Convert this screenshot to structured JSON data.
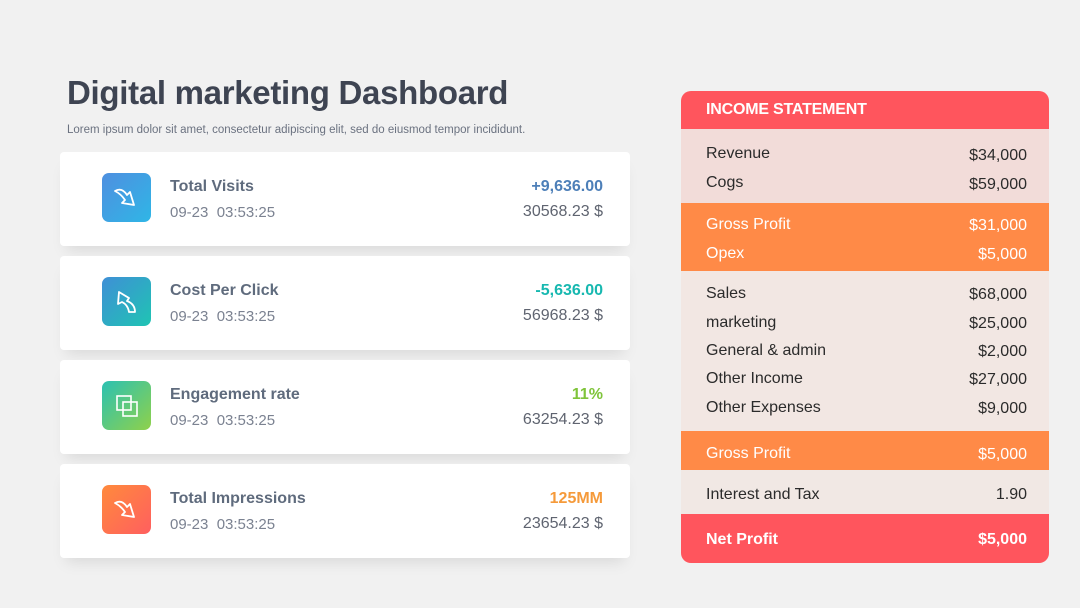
{
  "header": {
    "title_bold": "Digital marketing",
    "title_rest": "Dashboard",
    "subtitle": "Lorem ipsum dolor sit amet, consectetur adipiscing elit, sed do eiusmod tempor incididunt."
  },
  "colors": {
    "accent_red": "#ff555d",
    "accent_orange": "#ff8a47",
    "visits_blue": "#4d7fb8",
    "cpc_teal": "#17b8b0",
    "engagement_green": "#7fc43a",
    "impressions_orange": "#f59a3a"
  },
  "metrics": [
    {
      "name": "Total Visits",
      "time": "09-23  03:53:25",
      "change": "+9,636.00",
      "amount": "30568.23 $",
      "icon": "arrow-down-right-icon"
    },
    {
      "name": "Cost Per Click",
      "time": "09-23  03:53:25",
      "change": "-5,636.00",
      "amount": "56968.23 $",
      "icon": "arrow-up-left-icon"
    },
    {
      "name": "Engagement rate",
      "time": "09-23  03:53:25",
      "change": "11%",
      "amount": "63254.23 $",
      "icon": "squares-icon"
    },
    {
      "name": "Total Impressions",
      "time": "09-23  03:53:25",
      "change": "125MM",
      "amount": "23654.23 $",
      "icon": "arrow-down-right-icon"
    }
  ],
  "income_statement": {
    "title": "INCOME STATEMENT",
    "rows": [
      {
        "label": "Revenue",
        "value": "$34,000"
      },
      {
        "label": "Cogs",
        "value": "$59,000"
      },
      {
        "label": "Gross Profit",
        "value": "$31,000"
      },
      {
        "label": "Opex",
        "value": "$5,000"
      },
      {
        "label": "Sales",
        "value": "$68,000"
      },
      {
        "label": "marketing",
        "value": "$25,000"
      },
      {
        "label": "General & admin",
        "value": "$2,000"
      },
      {
        "label": "Other Income",
        "value": "$27,000"
      },
      {
        "label": "Other Expenses",
        "value": "$9,000"
      },
      {
        "label": "Gross Profit",
        "value": "$5,000"
      },
      {
        "label": "Interest and Tax",
        "value": "1.90"
      },
      {
        "label": "Net Profit",
        "value": "$5,000"
      }
    ]
  }
}
